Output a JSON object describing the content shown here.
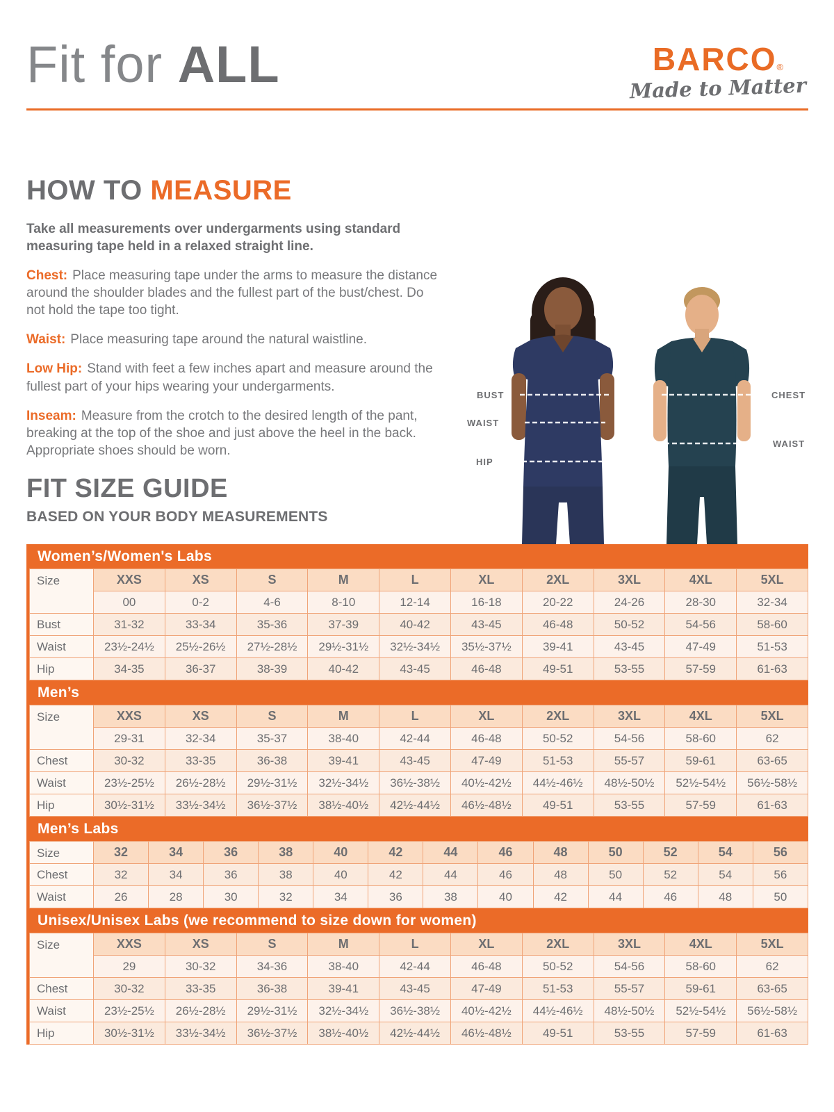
{
  "page": {
    "title_light": "Fit for ",
    "title_bold": "ALL"
  },
  "brand": {
    "name": "BARCO",
    "registered": "®",
    "tagline": "Made to Matter"
  },
  "how_to_measure": {
    "heading_gray": "HOW TO ",
    "heading_orange": "MEASURE",
    "intro": "Take all measurements over undergarments using standard measuring tape held in a relaxed straight line.",
    "steps": [
      {
        "label": "Chest:",
        "text": "Place measuring tape under the arms to measure the distance around the shoulder blades and the fullest part of the bust/chest. Do not hold the tape too tight."
      },
      {
        "label": "Waist:",
        "text": "Place measuring tape around the natural waistline."
      },
      {
        "label": "Low Hip:",
        "text": "Stand with feet a few inches apart and measure around the fullest part of your hips wearing your undergarments."
      },
      {
        "label": "Inseam:",
        "text": "Measure from the crotch to the desired length of the pant, breaking at the top of the shoe and just above the heel in the back. Appropriate shoes should be worn."
      }
    ]
  },
  "figure": {
    "left_labels": [
      "BUST",
      "WAIST",
      "HIP"
    ],
    "right_labels": [
      "CHEST",
      "WAIST"
    ]
  },
  "size_guide": {
    "heading": "FIT SIZE GUIDE",
    "subheading": "BASED ON YOUR BODY MEASUREMENTS"
  },
  "tables": [
    {
      "id": "women",
      "banner": "Women’s/Women's Labs",
      "label_col": "Size",
      "size_headers": [
        "XXS",
        "XS",
        "S",
        "M",
        "L",
        "XL",
        "2XL",
        "3XL",
        "4XL",
        "5XL"
      ],
      "numeric_row": [
        "00",
        "0-2",
        "4-6",
        "8-10",
        "12-14",
        "16-18",
        "20-22",
        "24-26",
        "28-30",
        "32-34"
      ],
      "rows": [
        {
          "label": "Bust",
          "values": [
            "31-32",
            "33-34",
            "35-36",
            "37-39",
            "40-42",
            "43-45",
            "46-48",
            "50-52",
            "54-56",
            "58-60"
          ]
        },
        {
          "label": "Waist",
          "values": [
            "23½-24½",
            "25½-26½",
            "27½-28½",
            "29½-31½",
            "32½-34½",
            "35½-37½",
            "39-41",
            "43-45",
            "47-49",
            "51-53"
          ]
        },
        {
          "label": "Hip",
          "values": [
            "34-35",
            "36-37",
            "38-39",
            "40-42",
            "43-45",
            "46-48",
            "49-51",
            "53-55",
            "57-59",
            "61-63"
          ]
        }
      ]
    },
    {
      "id": "men",
      "banner": "Men’s",
      "label_col": "Size",
      "size_headers": [
        "XXS",
        "XS",
        "S",
        "M",
        "L",
        "XL",
        "2XL",
        "3XL",
        "4XL",
        "5XL"
      ],
      "numeric_row": [
        "29-31",
        "32-34",
        "35-37",
        "38-40",
        "42-44",
        "46-48",
        "50-52",
        "54-56",
        "58-60",
        "62"
      ],
      "rows": [
        {
          "label": "Chest",
          "values": [
            "30-32",
            "33-35",
            "36-38",
            "39-41",
            "43-45",
            "47-49",
            "51-53",
            "55-57",
            "59-61",
            "63-65"
          ]
        },
        {
          "label": "Waist",
          "values": [
            "23½-25½",
            "26½-28½",
            "29½-31½",
            "32½-34½",
            "36½-38½",
            "40½-42½",
            "44½-46½",
            "48½-50½",
            "52½-54½",
            "56½-58½"
          ]
        },
        {
          "label": "Hip",
          "values": [
            "30½-31½",
            "33½-34½",
            "36½-37½",
            "38½-40½",
            "42½-44½",
            "46½-48½",
            "49-51",
            "53-55",
            "57-59",
            "61-63"
          ]
        }
      ]
    },
    {
      "id": "mens-labs",
      "banner": "Men’s Labs",
      "label_col": "Size",
      "size_headers": [
        "32",
        "34",
        "36",
        "38",
        "40",
        "42",
        "44",
        "46",
        "48",
        "50",
        "52",
        "54",
        "56"
      ],
      "numeric_row": null,
      "rows": [
        {
          "label": "Chest",
          "values": [
            "32",
            "34",
            "36",
            "38",
            "40",
            "42",
            "44",
            "46",
            "48",
            "50",
            "52",
            "54",
            "56"
          ]
        },
        {
          "label": "Waist",
          "values": [
            "26",
            "28",
            "30",
            "32",
            "34",
            "36",
            "38",
            "40",
            "42",
            "44",
            "46",
            "48",
            "50"
          ]
        }
      ]
    },
    {
      "id": "unisex",
      "banner": "Unisex/Unisex Labs (we recommend to size down for women)",
      "label_col": "Size",
      "size_headers": [
        "XXS",
        "XS",
        "S",
        "M",
        "L",
        "XL",
        "2XL",
        "3XL",
        "4XL",
        "5XL"
      ],
      "numeric_row": [
        "29",
        "30-32",
        "34-36",
        "38-40",
        "42-44",
        "46-48",
        "50-52",
        "54-56",
        "58-60",
        "62"
      ],
      "rows": [
        {
          "label": "Chest",
          "values": [
            "30-32",
            "33-35",
            "36-38",
            "39-41",
            "43-45",
            "47-49",
            "51-53",
            "55-57",
            "59-61",
            "63-65"
          ]
        },
        {
          "label": "Waist",
          "values": [
            "23½-25½",
            "26½-28½",
            "29½-31½",
            "32½-34½",
            "36½-38½",
            "40½-42½",
            "44½-46½",
            "48½-50½",
            "52½-54½",
            "56½-58½"
          ]
        },
        {
          "label": "Hip",
          "values": [
            "30½-31½",
            "33½-34½",
            "36½-37½",
            "38½-40½",
            "42½-44½",
            "46½-48½",
            "49-51",
            "53-55",
            "57-59",
            "61-63"
          ]
        }
      ]
    }
  ],
  "colors": {
    "accent_orange": "#EB6B28",
    "heading_gray": "#6D6E71",
    "body_gray": "#77787B",
    "table_header_bg": "#FBDCC3",
    "table_row_bg": "#FDF2EB",
    "table_border": "#F0A478",
    "woman_scrub": "#2E3A63",
    "man_scrub": "#254250"
  }
}
